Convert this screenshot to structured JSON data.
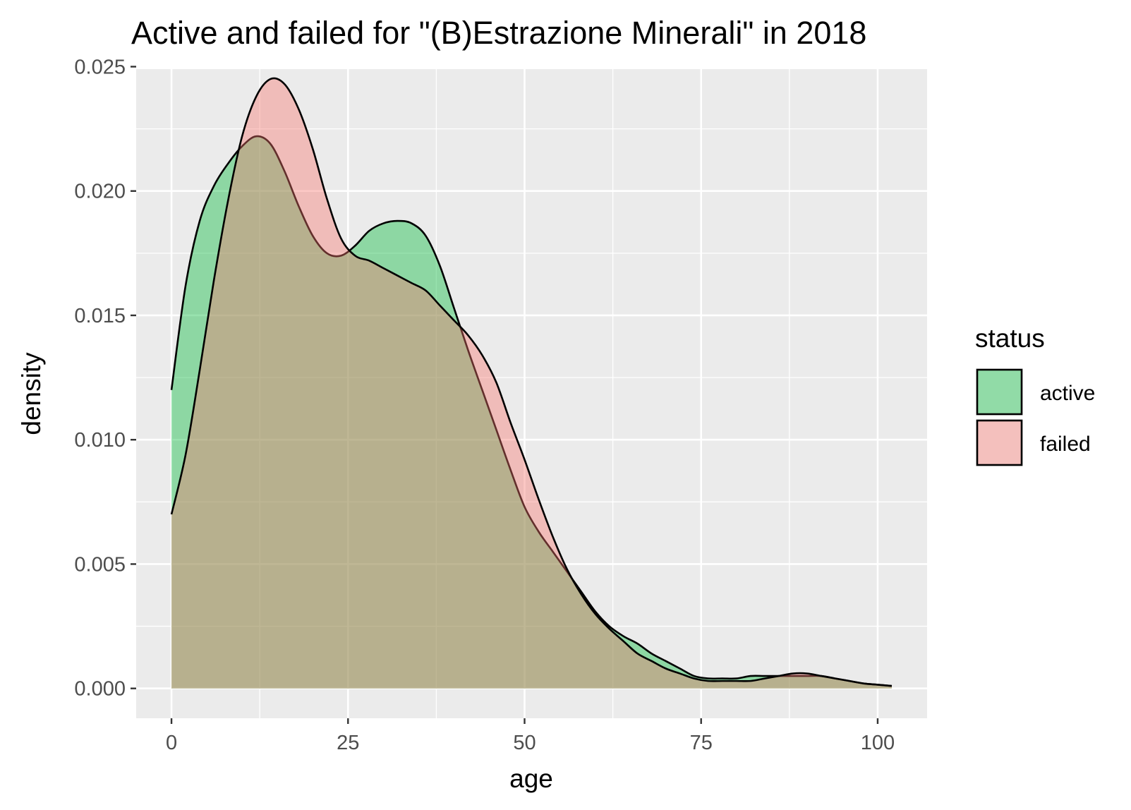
{
  "chart_data": {
    "type": "area",
    "title": "Active and failed for \"(B)Estrazione Minerali\" in 2018",
    "xlabel": "age",
    "ylabel": "density",
    "xlim": [
      -5,
      107
    ],
    "ylim": [
      -0.0012,
      0.0249
    ],
    "x_ticks": [
      0,
      25,
      50,
      75,
      100
    ],
    "x_tick_labels": [
      "0",
      "25",
      "50",
      "75",
      "100"
    ],
    "y_ticks": [
      0,
      0.005,
      0.01,
      0.015,
      0.02,
      0.025
    ],
    "y_tick_labels": [
      "0.000",
      "0.005",
      "0.010",
      "0.015",
      "0.020",
      "0.025"
    ],
    "grid": true,
    "legend": {
      "title": "status",
      "position": "right",
      "entries": [
        "active",
        "failed"
      ]
    },
    "series": [
      {
        "name": "active",
        "color": "#00BA38",
        "x": [
          0,
          2,
          4,
          6,
          8,
          10,
          12,
          14,
          16,
          18,
          20,
          22,
          24,
          26,
          28,
          30,
          32,
          34,
          36,
          38,
          40,
          42,
          44,
          46,
          48,
          50,
          52,
          54,
          56,
          58,
          60,
          62,
          64,
          66,
          68,
          70,
          72,
          74,
          76,
          78,
          80,
          82,
          84,
          86,
          88,
          90,
          92,
          94,
          96,
          98,
          100,
          102
        ],
        "y": [
          0.012,
          0.0162,
          0.0188,
          0.0202,
          0.0211,
          0.0218,
          0.0222,
          0.0219,
          0.0208,
          0.0194,
          0.0182,
          0.0175,
          0.0174,
          0.0178,
          0.0184,
          0.0187,
          0.0188,
          0.0187,
          0.0182,
          0.017,
          0.0153,
          0.0136,
          0.012,
          0.0104,
          0.0088,
          0.0073,
          0.0063,
          0.0055,
          0.0047,
          0.0039,
          0.0031,
          0.0025,
          0.0021,
          0.0018,
          0.0014,
          0.0011,
          0.0008,
          0.0005,
          0.0004,
          0.0004,
          0.0004,
          0.0005,
          0.0005,
          0.0005,
          0.0005,
          0.0005,
          0.0005,
          0.0004,
          0.0003,
          0.0002,
          0.00015,
          0.0001
        ]
      },
      {
        "name": "failed",
        "color": "#F8766D",
        "x": [
          0,
          2,
          4,
          6,
          8,
          10,
          12,
          14,
          16,
          18,
          20,
          22,
          24,
          26,
          28,
          30,
          32,
          34,
          36,
          38,
          40,
          42,
          44,
          46,
          48,
          50,
          52,
          54,
          56,
          58,
          60,
          62,
          64,
          66,
          68,
          70,
          72,
          74,
          76,
          78,
          80,
          82,
          84,
          86,
          88,
          90,
          92,
          94,
          96,
          98,
          100,
          102
        ],
        "y": [
          0.007,
          0.0094,
          0.0128,
          0.0164,
          0.0196,
          0.0222,
          0.0238,
          0.0245,
          0.0243,
          0.0233,
          0.0217,
          0.0197,
          0.0181,
          0.0174,
          0.0172,
          0.0169,
          0.0166,
          0.0163,
          0.016,
          0.0154,
          0.0148,
          0.0142,
          0.0134,
          0.0123,
          0.0107,
          0.0092,
          0.0076,
          0.0061,
          0.0048,
          0.0038,
          0.003,
          0.0024,
          0.0019,
          0.0014,
          0.0011,
          0.0008,
          0.0006,
          0.0004,
          0.0003,
          0.0003,
          0.0003,
          0.0003,
          0.0004,
          0.0005,
          0.0006,
          0.0006,
          0.0005,
          0.0004,
          0.0003,
          0.0002,
          0.00015,
          0.0001
        ]
      }
    ]
  }
}
